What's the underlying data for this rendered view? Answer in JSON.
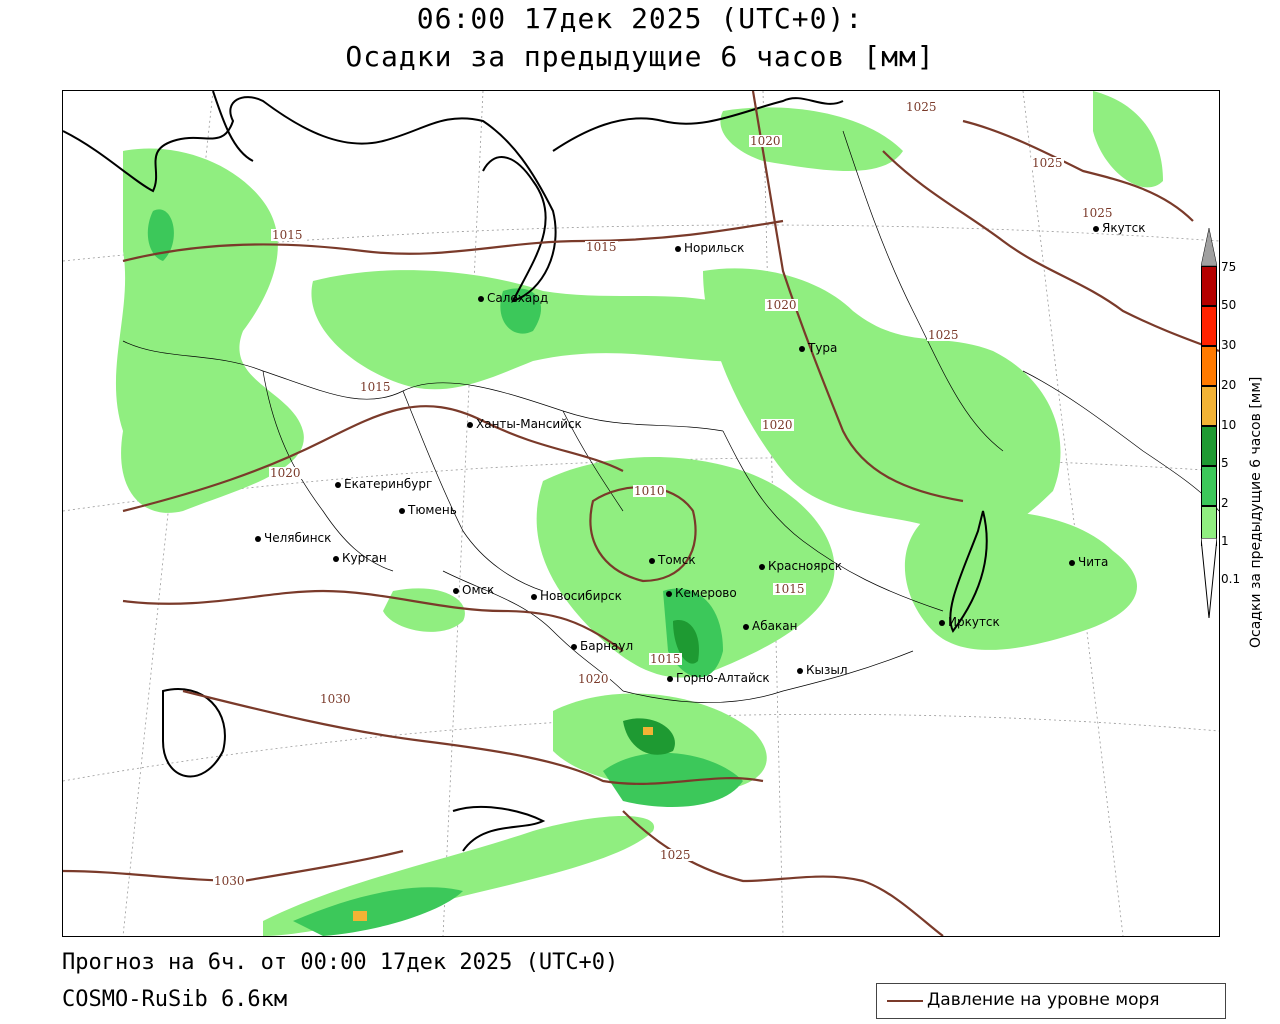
{
  "header": {
    "title_line1": "06:00 17дек 2025 (UTC+0):",
    "title_line2": "Осадки за предыдущие 6 часов [мм]"
  },
  "footer": {
    "forecast": "Прогноз на 6ч. от 00:00 17дек 2025 (UTC+0)",
    "model": "COSMO-RuSib 6.6км"
  },
  "legend": {
    "pressure_label": "Давление на уровне моря",
    "pressure_color": "#7a3a2a"
  },
  "colorbar": {
    "title": "Осадки за предыдущие 6 часов [мм]",
    "levels": [
      "0.1",
      "1",
      "2",
      "5",
      "10",
      "20",
      "30",
      "50",
      "75"
    ],
    "colors": [
      "#ffffff",
      "#90ee80",
      "#3cc85a",
      "#1e9a32",
      "#f2b335",
      "#ff7a00",
      "#ff2200",
      "#b40000",
      "#a0a0a0"
    ]
  },
  "cities": [
    {
      "name": "Норильск"
    },
    {
      "name": "Якутск"
    },
    {
      "name": "Салехард"
    },
    {
      "name": "Тура"
    },
    {
      "name": "Ханты-Мансийск"
    },
    {
      "name": "Екатеринбург"
    },
    {
      "name": "Тюмень"
    },
    {
      "name": "Челябинск"
    },
    {
      "name": "Курган"
    },
    {
      "name": "Омск"
    },
    {
      "name": "Новосибирск"
    },
    {
      "name": "Томск"
    },
    {
      "name": "Кемерово"
    },
    {
      "name": "Красноярск"
    },
    {
      "name": "Абакан"
    },
    {
      "name": "Барнаул"
    },
    {
      "name": "Горно-Алтайск"
    },
    {
      "name": "Кызыл"
    },
    {
      "name": "Иркутск"
    },
    {
      "name": "Чита"
    }
  ],
  "isobars": [
    "1025",
    "1020",
    "1025",
    "1015",
    "1015",
    "1020",
    "1025",
    "1015",
    "1020",
    "1020",
    "1010",
    "1025",
    "1015",
    "1015",
    "1020",
    "1030",
    "1025",
    "1030"
  ]
}
